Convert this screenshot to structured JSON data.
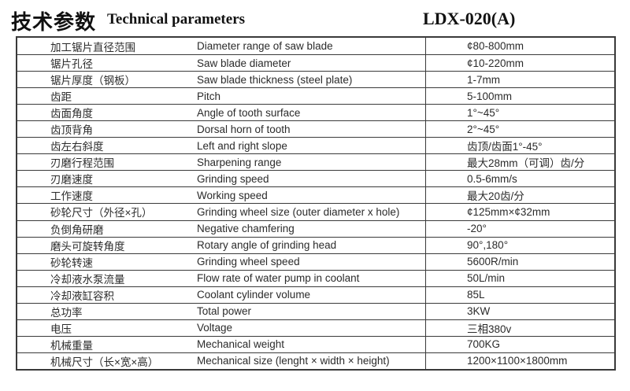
{
  "header": {
    "title_zh": "技术参数",
    "title_en": "Technical parameters",
    "model": "LDX-020(A)"
  },
  "colors": {
    "background": "#ffffff",
    "text": "#2b2b2b",
    "header_text": "#111111",
    "border": "#3a3a3a"
  },
  "table": {
    "columns": [
      "parameter_zh",
      "parameter_en",
      "value"
    ],
    "rows": [
      {
        "cn": "加工锯片直径范围",
        "en": "Diameter range of saw blade",
        "value": "¢80-800mm"
      },
      {
        "cn": "锯片孔径",
        "en": "Saw blade diameter",
        "value": "¢10-220mm"
      },
      {
        "cn": "锯片厚度（钢板）",
        "en": "Saw blade thickness (steel plate)",
        "value": "1-7mm"
      },
      {
        "cn": "齿距",
        "en": "Pitch",
        "value": "5-100mm"
      },
      {
        "cn": "齿面角度",
        "en": "Angle of tooth surface",
        "value": "1°~45°"
      },
      {
        "cn": "齿顶背角",
        "en": "Dorsal horn of tooth",
        "value": "2°~45°"
      },
      {
        "cn": "齿左右斜度",
        "en": "Left and right slope",
        "value": "齿顶/齿面1°-45°"
      },
      {
        "cn": "刃磨行程范围",
        "en": "Sharpening range",
        "value": "最大28mm（可调）齿/分"
      },
      {
        "cn": "刃磨速度",
        "en": "Grinding speed",
        "value": "0.5-6mm/s"
      },
      {
        "cn": "工作速度",
        "en": "Working speed",
        "value": "最大20齿/分"
      },
      {
        "cn": "砂轮尺寸（外径×孔）",
        "en": "Grinding wheel size (outer diameter x hole)",
        "value": "¢125mm×¢32mm"
      },
      {
        "cn": "负倒角研磨",
        "en": "Negative chamfering",
        "value": "-20°"
      },
      {
        "cn": "磨头可旋转角度",
        "en": "Rotary angle of grinding head",
        "value": "90°,180°"
      },
      {
        "cn": "砂轮转速",
        "en": "Grinding wheel speed",
        "value": "5600R/min"
      },
      {
        "cn": "冷却液水泵流量",
        "en": "Flow rate of water pump in coolant",
        "value": "50L/min"
      },
      {
        "cn": "冷却液缸容积",
        "en": "Coolant cylinder volume",
        "value": "85L"
      },
      {
        "cn": "总功率",
        "en": "Total power",
        "value": "3KW"
      },
      {
        "cn": "电压",
        "en": "Voltage",
        "value": "三相380v"
      },
      {
        "cn": "机械重量",
        "en": "Mechanical weight",
        "value": "700KG"
      },
      {
        "cn": "机械尺寸（长×宽×高）",
        "en": "Mechanical size (lenght × width × height)",
        "value": "1200×1100×1800mm"
      }
    ]
  }
}
